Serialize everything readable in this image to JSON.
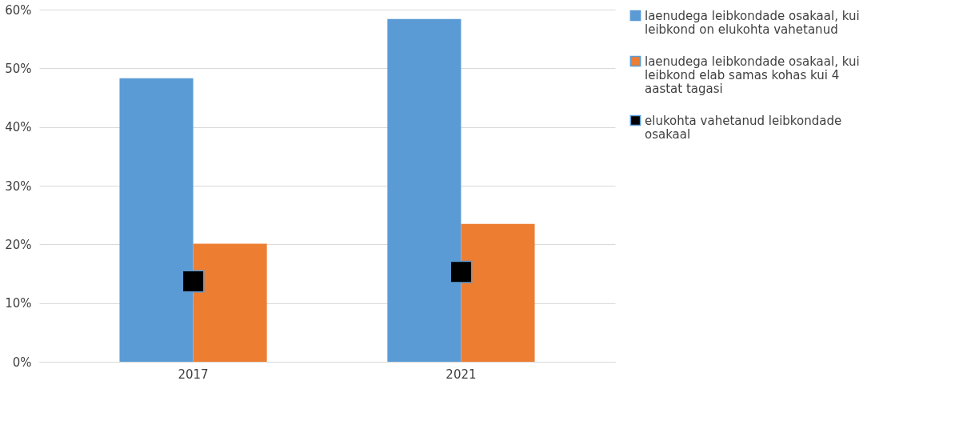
{
  "chart_data": {
    "type": "bar",
    "categories": [
      "2017",
      "2021"
    ],
    "series": [
      {
        "name": "laenudega leibkondade osakaal, kui leibkond on elukohta vahetanud",
        "color": "#5b9bd5",
        "values": [
          48.3,
          58.4
        ]
      },
      {
        "name": "laenudega leibkondade osakaal, kui leibkond elab samas kohas kui 4 aastat tagasi",
        "color": "#ed7d31",
        "values": [
          20.1,
          23.5
        ]
      },
      {
        "name": "elukohta vahetanud leibkondade osakaal",
        "color": "#000000",
        "type": "scatter",
        "marker": "square",
        "values": [
          13.7,
          15.3
        ]
      }
    ],
    "ylim": [
      0,
      60
    ],
    "yticks": [
      {
        "value": 0,
        "label": "0%"
      },
      {
        "value": 10,
        "label": "10%"
      },
      {
        "value": 20,
        "label": "20%"
      },
      {
        "value": 30,
        "label": "30%"
      },
      {
        "value": 40,
        "label": "40%"
      },
      {
        "value": 50,
        "label": "50%"
      },
      {
        "value": 60,
        "label": "60%"
      }
    ],
    "grid": "y",
    "legend": "right"
  }
}
